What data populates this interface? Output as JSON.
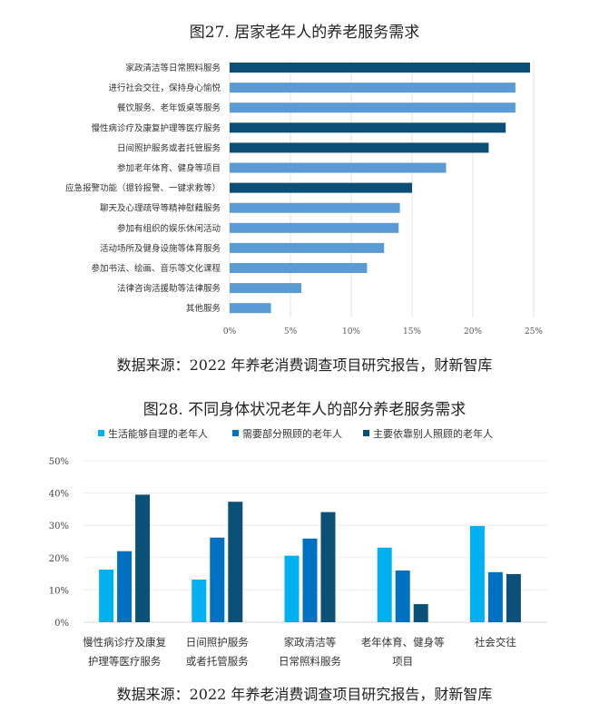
{
  "chart_data": [
    {
      "type": "bar",
      "orientation": "horizontal",
      "title": "图27. 居家老年人的养老服务需求",
      "source": "数据来源：2022 年养老消费调查项目研究报告，财新智库",
      "categories": [
        "家政清洁等日常照料服务",
        "进行社会交往，保持身心愉悦",
        "餐饮服务、老年饭桌等服务",
        "慢性病诊疗及康复护理等医疗服务",
        "日间照护服务或者托管服务",
        "参加老年体育、健身等项目",
        "应急报警功能（摁铃报警、一键求救等）",
        "聊天及心理疏导等精神慰藉服务",
        "参加有组织的娱乐休闲活动",
        "活动场所及健身设施等体育服务",
        "参加书法、绘画、音乐等文化课程",
        "法律咨询活援助等法律服务",
        "其他服务"
      ],
      "values": [
        24.7,
        23.5,
        23.5,
        22.7,
        21.3,
        17.8,
        15.0,
        14.0,
        13.9,
        12.7,
        11.3,
        5.9,
        3.4
      ],
      "highlight": [
        true,
        false,
        false,
        true,
        true,
        false,
        true,
        false,
        false,
        false,
        false,
        false,
        false
      ],
      "colors": {
        "highlight": "#0b4f77",
        "normal": "#5b9bd5"
      },
      "xlim": [
        0,
        25
      ],
      "xticks": [
        "0%",
        "5%",
        "10%",
        "15%",
        "20%",
        "25%"
      ],
      "grid": true
    },
    {
      "type": "bar",
      "title": "图28. 不同身体状况老年人的部分养老服务需求",
      "source": "数据来源：2022 年养老消费调查项目研究报告，财新智库",
      "categories": [
        [
          "慢性病诊疗及康复",
          "护理等医疗服务"
        ],
        [
          "日间照护服务",
          "或者托管服务"
        ],
        [
          "家政清洁等",
          "日常照料服务"
        ],
        [
          "老年体育、健身等",
          "项目"
        ],
        [
          "社会交往",
          ""
        ]
      ],
      "series": [
        {
          "name": "生活能够自理的老年人",
          "color": "#00b0f0",
          "values": [
            16.3,
            13.2,
            20.6,
            23.1,
            29.8
          ]
        },
        {
          "name": "需要部分照顾的老年人",
          "color": "#0070c0",
          "values": [
            22.0,
            26.2,
            25.9,
            16.0,
            15.5
          ]
        },
        {
          "name": "主要依靠别人照顾的老年人",
          "color": "#0b5077",
          "values": [
            39.5,
            37.3,
            34.1,
            5.6,
            14.9
          ]
        }
      ],
      "ylim": [
        0,
        50
      ],
      "yticks": [
        "0%",
        "10%",
        "20%",
        "30%",
        "40%",
        "50%"
      ],
      "legend": "top",
      "grid": true
    }
  ]
}
